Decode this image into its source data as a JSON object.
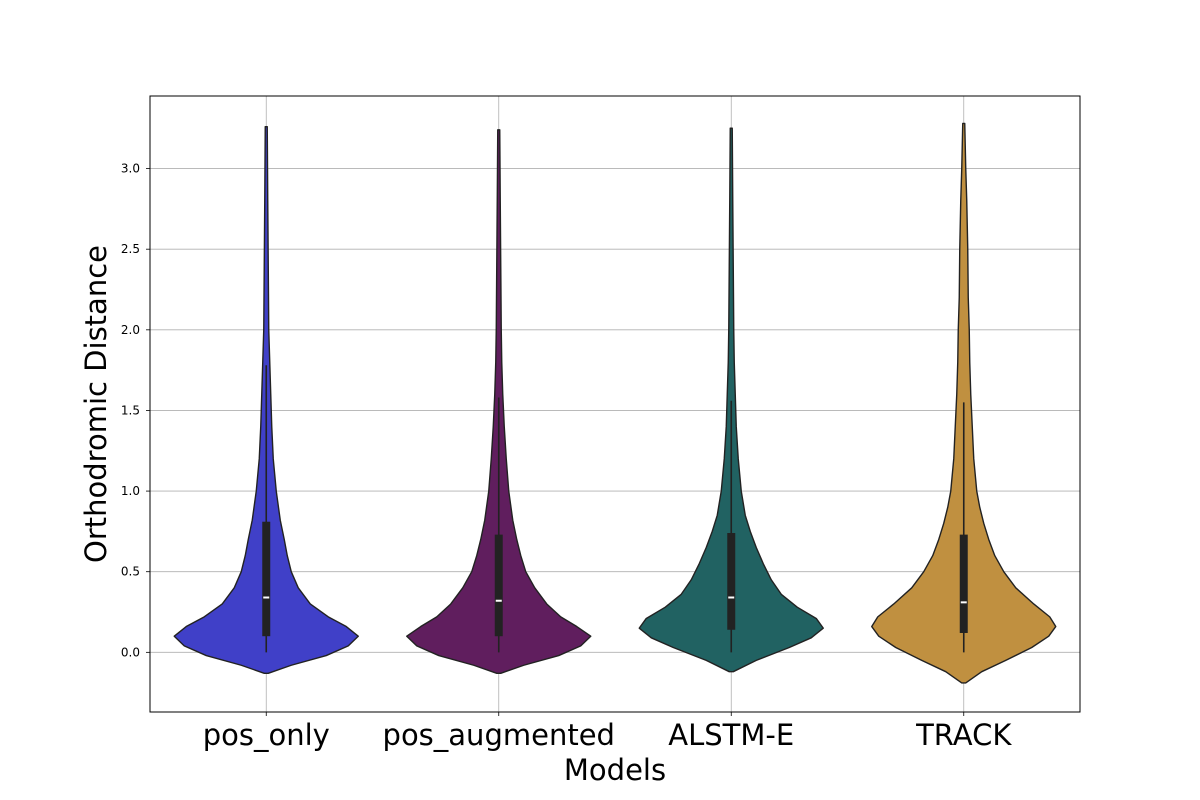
{
  "chart_data": {
    "type": "violin",
    "title": "",
    "xlabel": "Models",
    "ylabel": "Orthodromic Distance",
    "categories": [
      "pos_only",
      "pos_augmented",
      "ALSTM-E",
      "TRACK"
    ],
    "ylim": [
      -0.37,
      3.45
    ],
    "yticks": [
      "0.0",
      "0.5",
      "1.0",
      "1.5",
      "2.0",
      "2.5",
      "3.0"
    ],
    "grid": true,
    "legend": "none",
    "series": [
      {
        "category": "pos_only",
        "color": "#4040c8",
        "extent": [
          -0.13,
          3.26
        ],
        "q1": 0.1,
        "median": 0.34,
        "q3": 0.81,
        "whisker_high": 1.78,
        "density": [
          [
            -0.13,
            2
          ],
          [
            -0.08,
            25
          ],
          [
            -0.02,
            60
          ],
          [
            0.04,
            82
          ],
          [
            0.1,
            92
          ],
          [
            0.16,
            80
          ],
          [
            0.22,
            62
          ],
          [
            0.3,
            44
          ],
          [
            0.4,
            32
          ],
          [
            0.5,
            25
          ],
          [
            0.6,
            21
          ],
          [
            0.7,
            18
          ],
          [
            0.82,
            14
          ],
          [
            1.0,
            10
          ],
          [
            1.2,
            7
          ],
          [
            1.4,
            5.5
          ],
          [
            1.6,
            4.5
          ],
          [
            1.8,
            3.5
          ],
          [
            2.0,
            2.5
          ],
          [
            2.4,
            2
          ],
          [
            2.8,
            1.5
          ],
          [
            3.26,
            1
          ]
        ]
      },
      {
        "category": "pos_augmented",
        "color": "#601e5e",
        "extent": [
          -0.13,
          3.24
        ],
        "q1": 0.1,
        "median": 0.32,
        "q3": 0.73,
        "whisker_high": 1.58,
        "density": [
          [
            -0.13,
            2
          ],
          [
            -0.08,
            25
          ],
          [
            -0.02,
            60
          ],
          [
            0.04,
            82
          ],
          [
            0.1,
            92
          ],
          [
            0.16,
            78
          ],
          [
            0.22,
            62
          ],
          [
            0.3,
            48
          ],
          [
            0.4,
            36
          ],
          [
            0.5,
            27
          ],
          [
            0.6,
            22
          ],
          [
            0.7,
            18
          ],
          [
            0.82,
            14
          ],
          [
            1.0,
            10
          ],
          [
            1.2,
            7.5
          ],
          [
            1.4,
            5.5
          ],
          [
            1.6,
            4
          ],
          [
            1.8,
            3
          ],
          [
            2.0,
            2.5
          ],
          [
            2.4,
            2
          ],
          [
            2.8,
            1.5
          ],
          [
            3.24,
            1
          ]
        ]
      },
      {
        "category": "ALSTM-E",
        "color": "#216262",
        "extent": [
          -0.12,
          3.25
        ],
        "q1": 0.14,
        "median": 0.34,
        "q3": 0.74,
        "whisker_high": 1.56,
        "density": [
          [
            -0.12,
            2
          ],
          [
            -0.05,
            25
          ],
          [
            0.03,
            58
          ],
          [
            0.09,
            80
          ],
          [
            0.15,
            92
          ],
          [
            0.21,
            85
          ],
          [
            0.28,
            66
          ],
          [
            0.36,
            50
          ],
          [
            0.45,
            40
          ],
          [
            0.55,
            32
          ],
          [
            0.65,
            25
          ],
          [
            0.75,
            19
          ],
          [
            0.85,
            14
          ],
          [
            1.0,
            10
          ],
          [
            1.2,
            7
          ],
          [
            1.4,
            5
          ],
          [
            1.6,
            4
          ],
          [
            1.8,
            3
          ],
          [
            2.0,
            2.5
          ],
          [
            2.4,
            2
          ],
          [
            2.8,
            1.5
          ],
          [
            3.25,
            1
          ]
        ]
      },
      {
        "category": "TRACK",
        "color": "#c09040",
        "extent": [
          -0.19,
          3.28
        ],
        "q1": 0.12,
        "median": 0.31,
        "q3": 0.73,
        "whisker_high": 1.55,
        "density": [
          [
            -0.19,
            2
          ],
          [
            -0.12,
            18
          ],
          [
            -0.05,
            42
          ],
          [
            0.03,
            68
          ],
          [
            0.1,
            85
          ],
          [
            0.16,
            92
          ],
          [
            0.22,
            86
          ],
          [
            0.3,
            70
          ],
          [
            0.4,
            52
          ],
          [
            0.5,
            40
          ],
          [
            0.6,
            31
          ],
          [
            0.7,
            25
          ],
          [
            0.8,
            20
          ],
          [
            0.9,
            16
          ],
          [
            1.0,
            13
          ],
          [
            1.2,
            10
          ],
          [
            1.4,
            8.5
          ],
          [
            1.6,
            7
          ],
          [
            1.8,
            6
          ],
          [
            2.0,
            5.5
          ],
          [
            2.2,
            4.5
          ],
          [
            2.5,
            4
          ],
          [
            2.8,
            3
          ],
          [
            3.0,
            2
          ],
          [
            3.28,
            1
          ]
        ]
      }
    ]
  }
}
